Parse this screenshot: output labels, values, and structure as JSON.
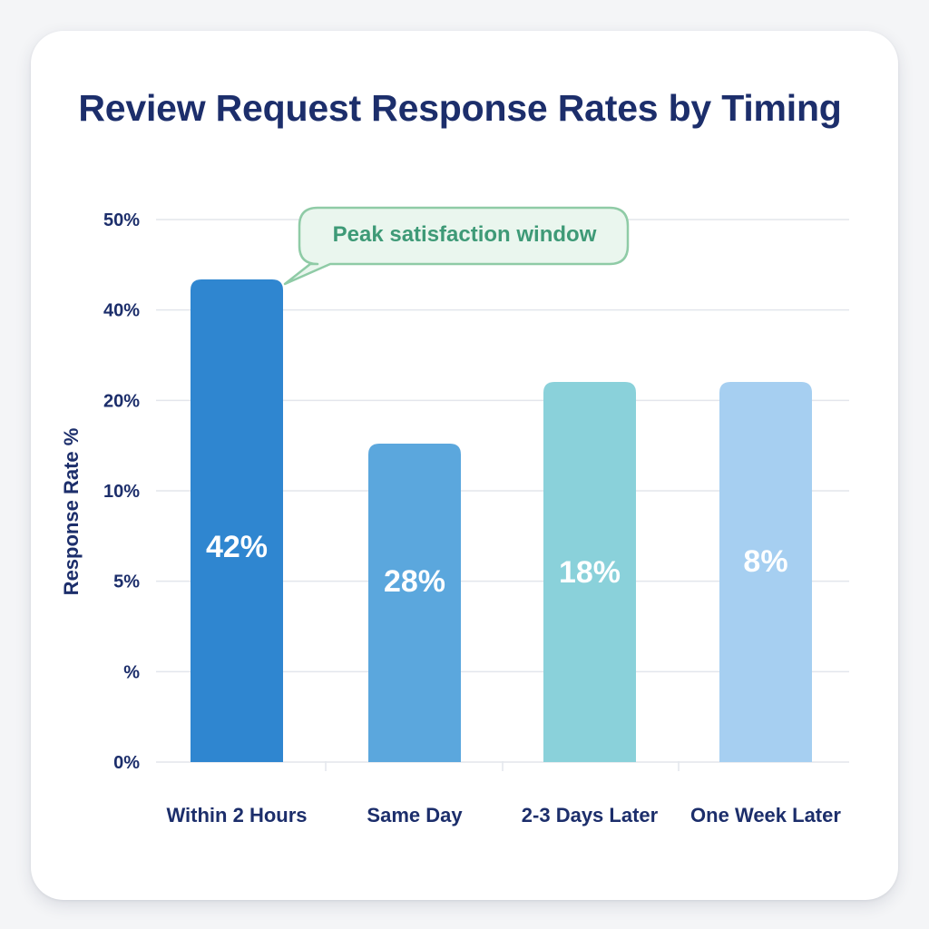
{
  "chart_data": {
    "type": "bar",
    "title": "Review Request Response Rates by Timing",
    "ylabel": "Response Rate %",
    "xlabel": "",
    "categories": [
      "Within 2 Hours",
      "Same Day",
      "2-3 Days Later",
      "One Week Later"
    ],
    "values": [
      42,
      28,
      18,
      8
    ],
    "data_labels": [
      "42%",
      "28%",
      "18%",
      "8%"
    ],
    "y_ticks": [
      "0%",
      "%",
      "5%",
      "10%",
      "20%",
      "40%",
      "50%"
    ],
    "grid": true,
    "bar_colors": [
      "#2f86d0",
      "#5ba7dd",
      "#8ad1da",
      "#a6cff1"
    ],
    "annotation": {
      "text": "Peak satisfaction window",
      "target_category": "Within 2 Hours",
      "fill": "#eaf6ee",
      "stroke": "#8fcba6"
    }
  },
  "colors": {
    "title": "#1c2e6b",
    "grid": "#e3e6ec",
    "card": "#ffffff"
  }
}
